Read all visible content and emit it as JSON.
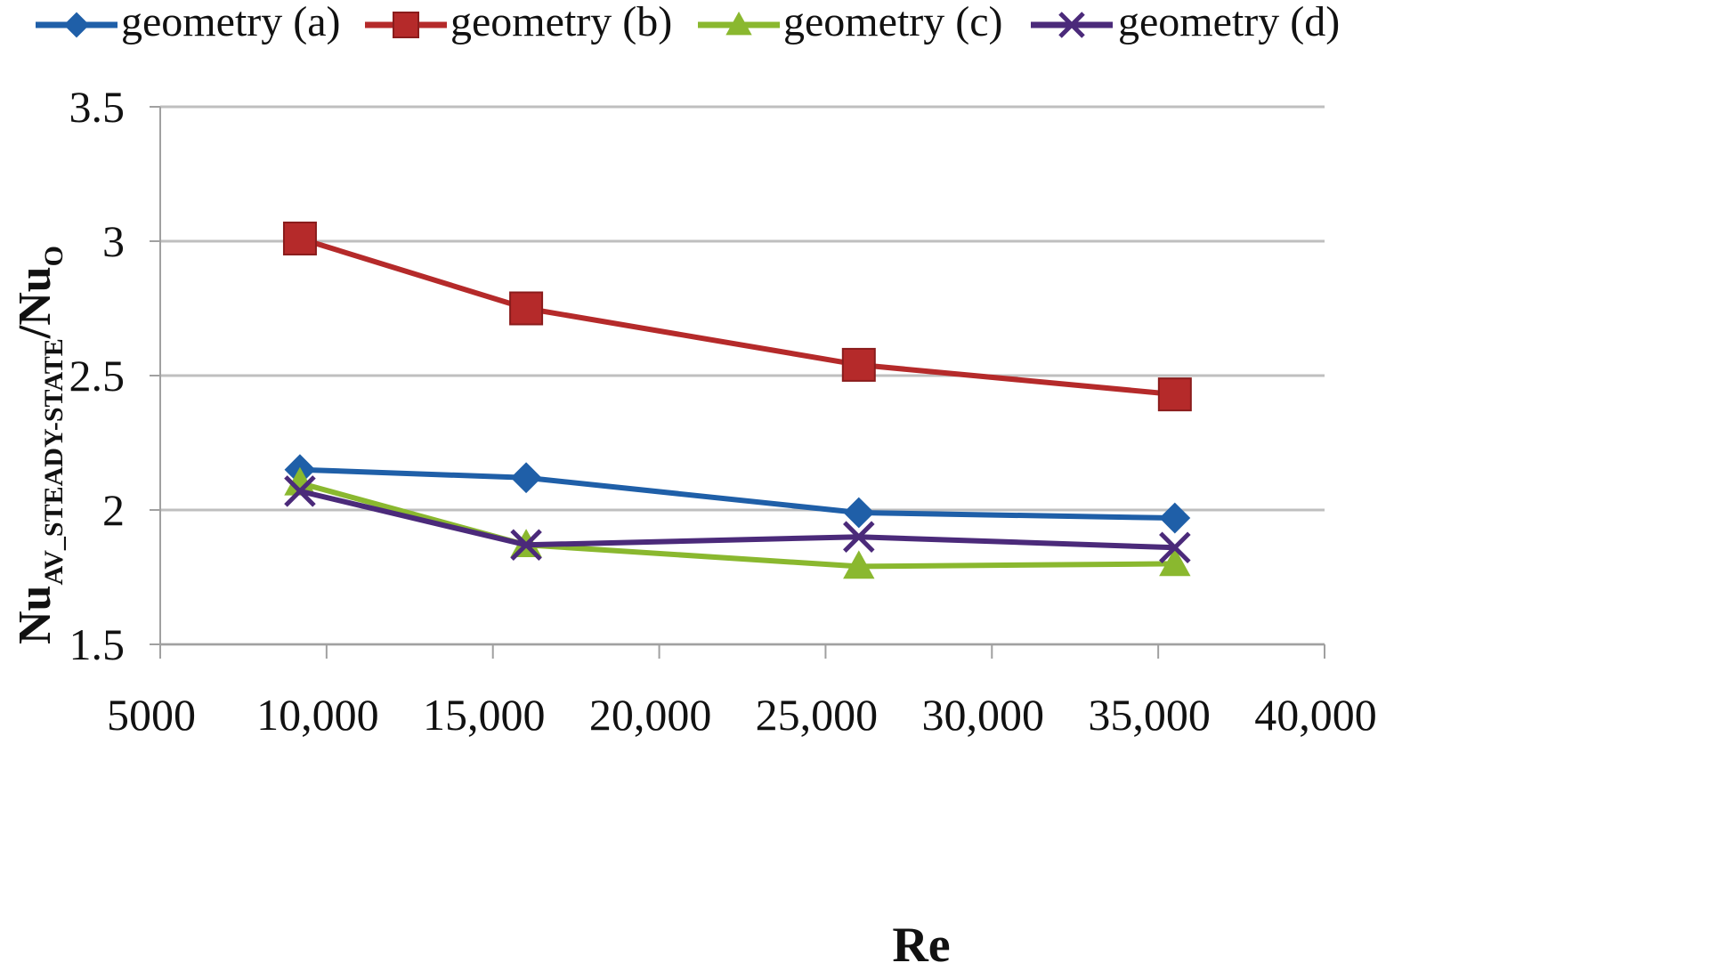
{
  "chart_data": {
    "type": "line",
    "title": "",
    "xlabel": "Re",
    "ylabel": {
      "main": "Nu",
      "sub": "AV_STEADY-STATE",
      "slash": "/Nu",
      "sub2": "O"
    },
    "xlim": [
      5000,
      40000
    ],
    "ylim": [
      1.5,
      3.5
    ],
    "x_ticks": [
      5000,
      10000,
      15000,
      20000,
      25000,
      30000,
      35000,
      40000
    ],
    "x_tick_labels": [
      "5000",
      "10,000",
      "15,000",
      "20,000",
      "25,000",
      "30,000",
      "35,000",
      "40,000"
    ],
    "y_ticks": [
      1.5,
      2,
      2.5,
      3,
      3.5
    ],
    "y_tick_labels": [
      "1.5",
      "2",
      "2.5",
      "3",
      "3.5"
    ],
    "grid": true,
    "legend_position": "top",
    "series": [
      {
        "name": "geometry (a)",
        "color": "#1f5fa8",
        "marker": "diamond",
        "x": [
          9200,
          16000,
          26000,
          35500
        ],
        "y": [
          2.15,
          2.12,
          1.99,
          1.97
        ]
      },
      {
        "name": "geometry (b)",
        "color": "#b52a2a",
        "marker": "square",
        "x": [
          9200,
          16000,
          26000,
          35500
        ],
        "y": [
          3.01,
          2.75,
          2.54,
          2.43
        ]
      },
      {
        "name": "geometry (c)",
        "color": "#8ab82f",
        "marker": "triangle",
        "x": [
          9200,
          16000,
          26000,
          35500
        ],
        "y": [
          2.1,
          1.87,
          1.79,
          1.8
        ]
      },
      {
        "name": "geometry (d)",
        "color": "#4b2a7a",
        "marker": "x",
        "x": [
          9200,
          16000,
          26000,
          35500
        ],
        "y": [
          2.07,
          1.87,
          1.9,
          1.86
        ]
      }
    ]
  }
}
